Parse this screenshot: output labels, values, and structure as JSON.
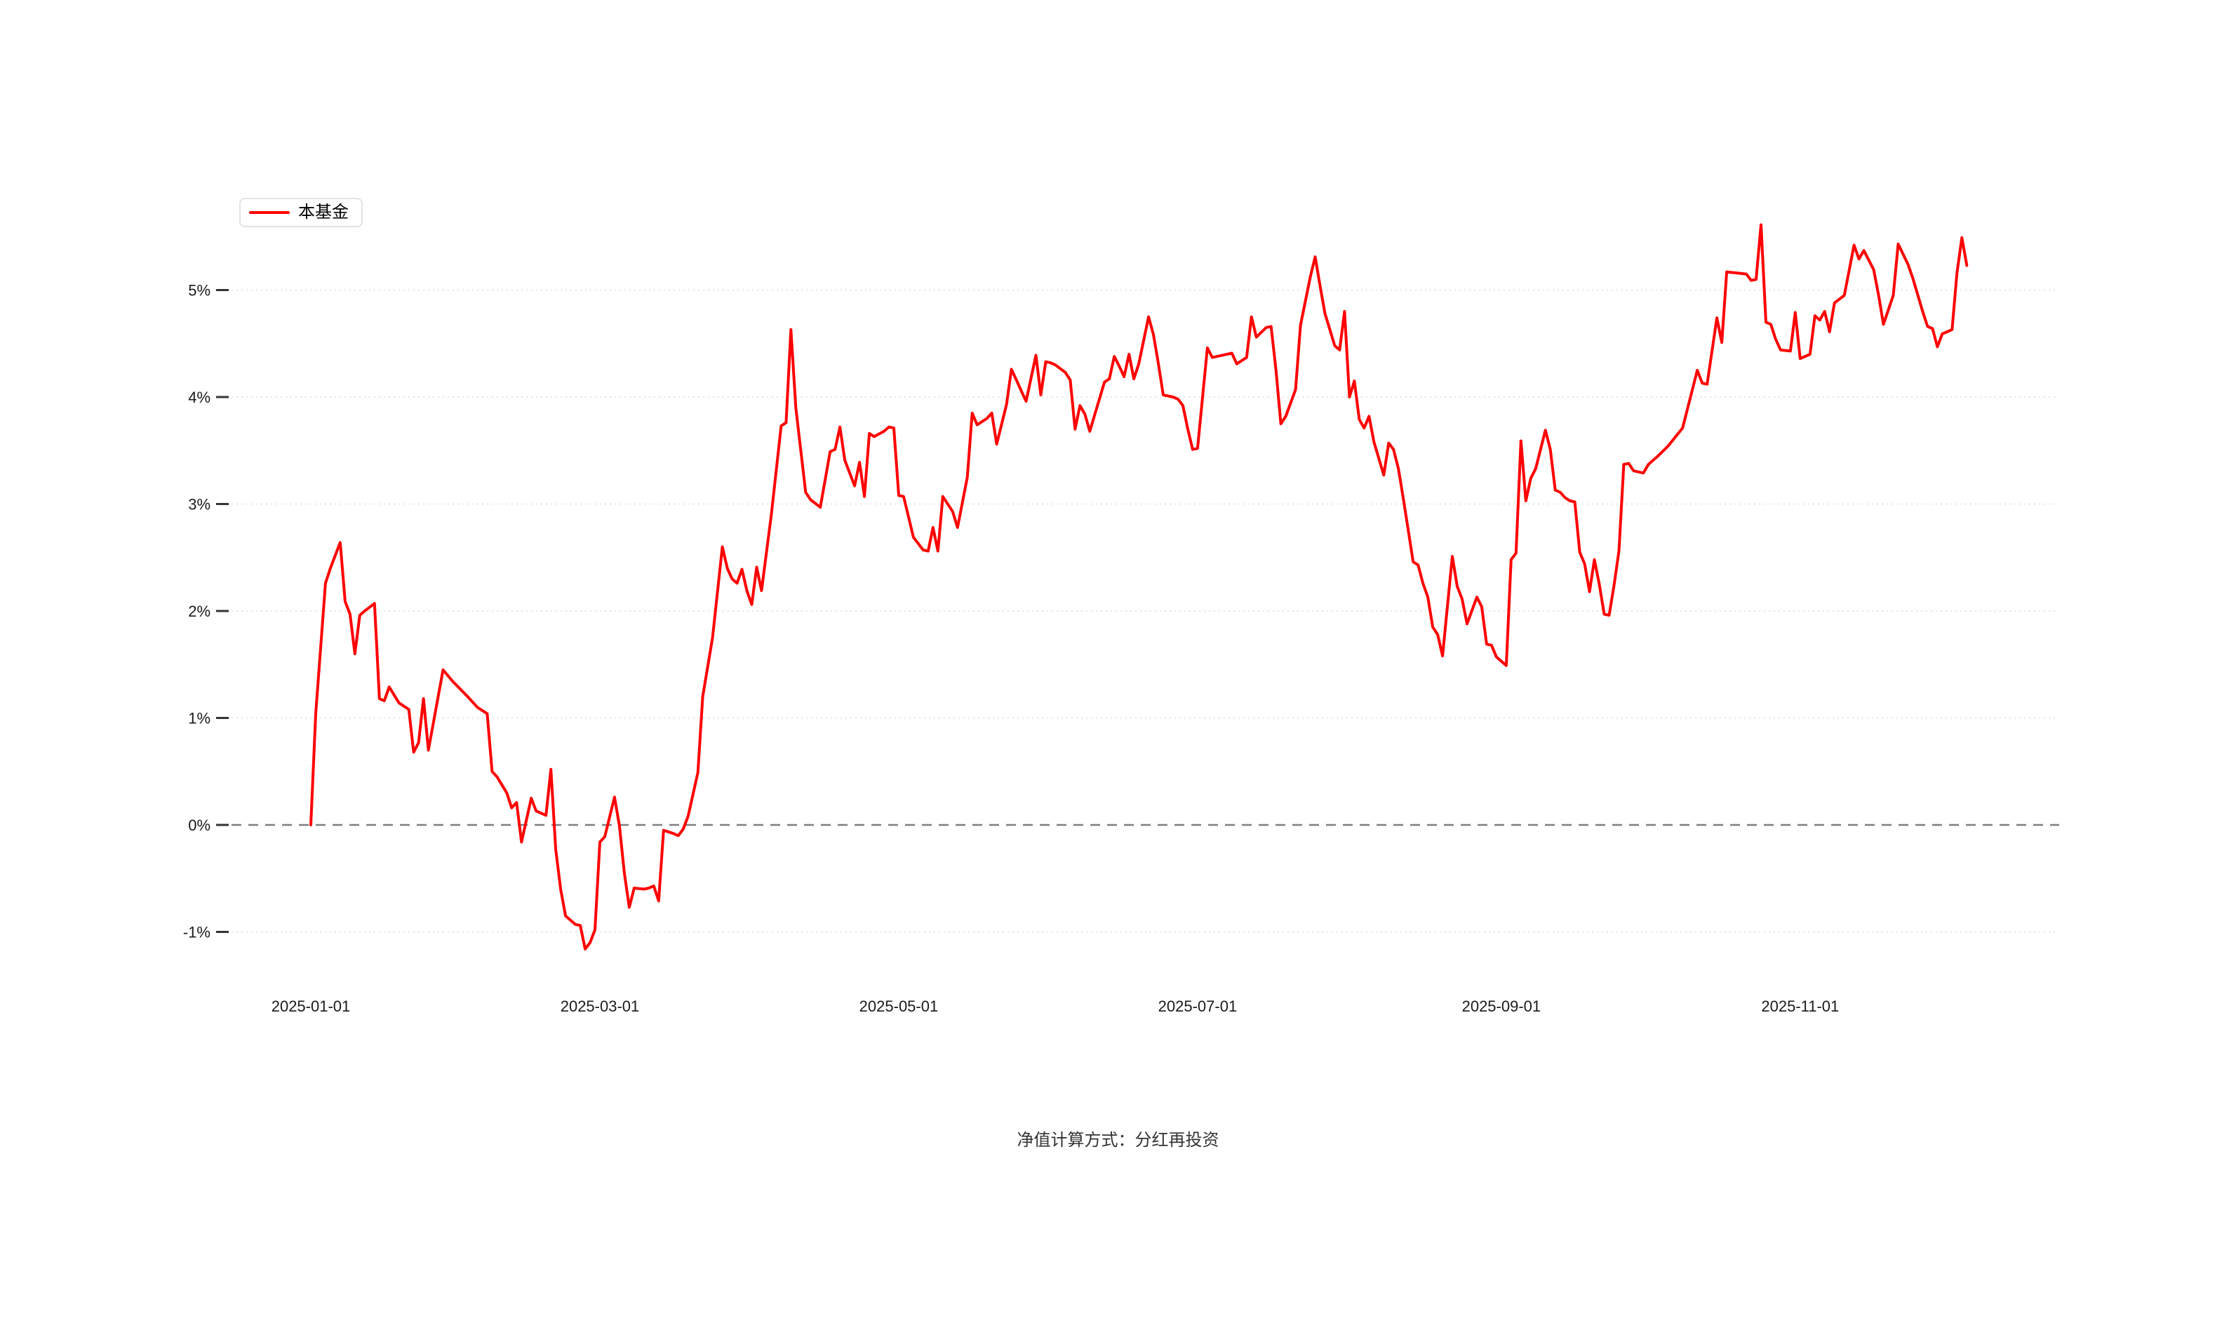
{
  "legend": {
    "label": "本基金"
  },
  "footer": {
    "note": "净值计算方式：分红再投资"
  },
  "chart_data": {
    "type": "line",
    "title": "",
    "xlabel": "",
    "ylabel": "",
    "y_unit": "%",
    "grid": true,
    "legend_position": "top-left",
    "line_color": "#ff0000",
    "zero_line_color": "#7f7f7f",
    "grid_color": "#e3e3e3",
    "ylim": [
      -1.7,
      5.9
    ],
    "y_ticks": [
      {
        "label": "5%",
        "value": 5
      },
      {
        "label": "4%",
        "value": 4
      },
      {
        "label": "3%",
        "value": 3
      },
      {
        "label": "2%",
        "value": 2
      },
      {
        "label": "1%",
        "value": 1
      },
      {
        "label": "0%",
        "value": 0
      },
      {
        "label": "-1%",
        "value": -1
      }
    ],
    "x_ticks": [
      {
        "label": "2025-01-01",
        "day": 0
      },
      {
        "label": "2025-03-01",
        "day": 59
      },
      {
        "label": "2025-05-01",
        "day": 120
      },
      {
        "label": "2025-07-01",
        "day": 181
      },
      {
        "label": "2025-09-01",
        "day": 243
      },
      {
        "label": "2025-11-01",
        "day": 304
      }
    ],
    "series": [
      {
        "name": "本基金",
        "unit": "%",
        "points": [
          [
            0,
            0.0
          ],
          [
            1,
            1.04
          ],
          [
            3,
            2.26
          ],
          [
            4,
            2.4
          ],
          [
            6,
            2.64
          ],
          [
            7,
            2.09
          ],
          [
            8,
            1.97
          ],
          [
            9,
            1.6
          ],
          [
            10,
            1.96
          ],
          [
            11,
            2.0
          ],
          [
            13,
            2.07
          ],
          [
            14,
            1.18
          ],
          [
            15,
            1.16
          ],
          [
            16,
            1.29
          ],
          [
            18,
            1.14
          ],
          [
            20,
            1.08
          ],
          [
            21,
            0.68
          ],
          [
            22,
            0.77
          ],
          [
            23,
            1.18
          ],
          [
            24,
            0.7
          ],
          [
            27,
            1.45
          ],
          [
            29,
            1.34
          ],
          [
            32,
            1.2
          ],
          [
            34,
            1.1
          ],
          [
            36,
            1.04
          ],
          [
            37,
            0.5
          ],
          [
            38,
            0.45
          ],
          [
            40,
            0.3
          ],
          [
            41,
            0.16
          ],
          [
            42,
            0.21
          ],
          [
            43,
            -0.16
          ],
          [
            45,
            0.25
          ],
          [
            46,
            0.13
          ],
          [
            48,
            0.09
          ],
          [
            49,
            0.52
          ],
          [
            50,
            -0.23
          ],
          [
            51,
            -0.6
          ],
          [
            52,
            -0.85
          ],
          [
            53,
            -0.89
          ],
          [
            54,
            -0.93
          ],
          [
            55,
            -0.94
          ],
          [
            56,
            -1.16
          ],
          [
            57,
            -1.1
          ],
          [
            58,
            -0.98
          ],
          [
            59,
            -0.16
          ],
          [
            60,
            -0.11
          ],
          [
            62,
            0.26
          ],
          [
            63,
            -0.01
          ],
          [
            64,
            -0.45
          ],
          [
            65,
            -0.77
          ],
          [
            66,
            -0.59
          ],
          [
            68,
            -0.6
          ],
          [
            69,
            -0.59
          ],
          [
            70,
            -0.57
          ],
          [
            71,
            -0.71
          ],
          [
            72,
            -0.05
          ],
          [
            74,
            -0.08
          ],
          [
            75,
            -0.1
          ],
          [
            76,
            -0.04
          ],
          [
            77,
            0.08
          ],
          [
            79,
            0.49
          ],
          [
            80,
            1.2
          ],
          [
            82,
            1.75
          ],
          [
            84,
            2.6
          ],
          [
            85,
            2.4
          ],
          [
            86,
            2.3
          ],
          [
            87,
            2.26
          ],
          [
            88,
            2.39
          ],
          [
            89,
            2.19
          ],
          [
            90,
            2.06
          ],
          [
            91,
            2.41
          ],
          [
            92,
            2.19
          ],
          [
            94,
            2.9
          ],
          [
            96,
            3.73
          ],
          [
            97,
            3.76
          ],
          [
            98,
            4.63
          ],
          [
            99,
            3.9
          ],
          [
            101,
            3.11
          ],
          [
            102,
            3.04
          ],
          [
            104,
            2.97
          ],
          [
            106,
            3.49
          ],
          [
            107,
            3.51
          ],
          [
            108,
            3.72
          ],
          [
            109,
            3.41
          ],
          [
            111,
            3.17
          ],
          [
            112,
            3.39
          ],
          [
            113,
            3.07
          ],
          [
            114,
            3.66
          ],
          [
            115,
            3.63
          ],
          [
            117,
            3.68
          ],
          [
            118,
            3.72
          ],
          [
            119,
            3.71
          ],
          [
            120,
            3.08
          ],
          [
            121,
            3.07
          ],
          [
            123,
            2.69
          ],
          [
            125,
            2.57
          ],
          [
            126,
            2.56
          ],
          [
            127,
            2.78
          ],
          [
            128,
            2.56
          ],
          [
            129,
            3.07
          ],
          [
            131,
            2.93
          ],
          [
            132,
            2.78
          ],
          [
            134,
            3.25
          ],
          [
            135,
            3.85
          ],
          [
            136,
            3.74
          ],
          [
            138,
            3.8
          ],
          [
            139,
            3.85
          ],
          [
            140,
            3.56
          ],
          [
            142,
            3.93
          ],
          [
            143,
            4.26
          ],
          [
            144,
            4.16
          ],
          [
            145,
            4.06
          ],
          [
            146,
            3.96
          ],
          [
            148,
            4.39
          ],
          [
            149,
            4.02
          ],
          [
            150,
            4.33
          ],
          [
            151,
            4.32
          ],
          [
            152,
            4.3
          ],
          [
            154,
            4.23
          ],
          [
            155,
            4.16
          ],
          [
            156,
            3.7
          ],
          [
            157,
            3.92
          ],
          [
            158,
            3.84
          ],
          [
            159,
            3.68
          ],
          [
            162,
            4.14
          ],
          [
            163,
            4.17
          ],
          [
            164,
            4.38
          ],
          [
            165,
            4.29
          ],
          [
            166,
            4.19
          ],
          [
            167,
            4.4
          ],
          [
            168,
            4.17
          ],
          [
            169,
            4.31
          ],
          [
            171,
            4.75
          ],
          [
            172,
            4.58
          ],
          [
            173,
            4.31
          ],
          [
            174,
            4.02
          ],
          [
            176,
            4.0
          ],
          [
            177,
            3.98
          ],
          [
            178,
            3.92
          ],
          [
            179,
            3.7
          ],
          [
            180,
            3.51
          ],
          [
            181,
            3.52
          ],
          [
            183,
            4.46
          ],
          [
            184,
            4.37
          ],
          [
            185,
            4.38
          ],
          [
            188,
            4.41
          ],
          [
            189,
            4.31
          ],
          [
            191,
            4.37
          ],
          [
            192,
            4.75
          ],
          [
            193,
            4.56
          ],
          [
            195,
            4.65
          ],
          [
            196,
            4.66
          ],
          [
            197,
            4.25
          ],
          [
            198,
            3.75
          ],
          [
            199,
            3.82
          ],
          [
            201,
            4.07
          ],
          [
            202,
            4.67
          ],
          [
            204,
            5.12
          ],
          [
            205,
            5.31
          ],
          [
            206,
            5.04
          ],
          [
            207,
            4.78
          ],
          [
            208,
            4.63
          ],
          [
            209,
            4.48
          ],
          [
            210,
            4.44
          ],
          [
            211,
            4.8
          ],
          [
            212,
            4.0
          ],
          [
            213,
            4.15
          ],
          [
            214,
            3.79
          ],
          [
            215,
            3.71
          ],
          [
            216,
            3.82
          ],
          [
            217,
            3.58
          ],
          [
            219,
            3.27
          ],
          [
            220,
            3.57
          ],
          [
            221,
            3.51
          ],
          [
            222,
            3.33
          ],
          [
            223,
            3.05
          ],
          [
            225,
            2.46
          ],
          [
            226,
            2.43
          ],
          [
            227,
            2.26
          ],
          [
            228,
            2.13
          ],
          [
            229,
            1.85
          ],
          [
            230,
            1.78
          ],
          [
            231,
            1.58
          ],
          [
            233,
            2.51
          ],
          [
            234,
            2.23
          ],
          [
            235,
            2.11
          ],
          [
            236,
            1.88
          ],
          [
            238,
            2.13
          ],
          [
            239,
            2.04
          ],
          [
            240,
            1.69
          ],
          [
            241,
            1.68
          ],
          [
            242,
            1.57
          ],
          [
            244,
            1.49
          ],
          [
            245,
            2.48
          ],
          [
            246,
            2.54
          ],
          [
            247,
            3.59
          ],
          [
            248,
            3.03
          ],
          [
            249,
            3.24
          ],
          [
            250,
            3.33
          ],
          [
            252,
            3.69
          ],
          [
            253,
            3.51
          ],
          [
            254,
            3.13
          ],
          [
            255,
            3.11
          ],
          [
            256,
            3.06
          ],
          [
            257,
            3.03
          ],
          [
            258,
            3.02
          ],
          [
            259,
            2.55
          ],
          [
            260,
            2.44
          ],
          [
            261,
            2.18
          ],
          [
            262,
            2.48
          ],
          [
            263,
            2.25
          ],
          [
            264,
            1.97
          ],
          [
            265,
            1.96
          ],
          [
            266,
            2.24
          ],
          [
            267,
            2.56
          ],
          [
            268,
            3.37
          ],
          [
            269,
            3.38
          ],
          [
            270,
            3.31
          ],
          [
            272,
            3.29
          ],
          [
            273,
            3.37
          ],
          [
            275,
            3.45
          ],
          [
            277,
            3.54
          ],
          [
            280,
            3.71
          ],
          [
            283,
            4.25
          ],
          [
            284,
            4.13
          ],
          [
            285,
            4.12
          ],
          [
            287,
            4.74
          ],
          [
            288,
            4.51
          ],
          [
            289,
            5.17
          ],
          [
            291,
            5.16
          ],
          [
            293,
            5.15
          ],
          [
            294,
            5.09
          ],
          [
            295,
            5.1
          ],
          [
            296,
            5.61
          ],
          [
            297,
            4.7
          ],
          [
            298,
            4.68
          ],
          [
            299,
            4.54
          ],
          [
            300,
            4.44
          ],
          [
            302,
            4.43
          ],
          [
            303,
            4.79
          ],
          [
            304,
            4.36
          ],
          [
            305,
            4.38
          ],
          [
            306,
            4.4
          ],
          [
            307,
            4.76
          ],
          [
            308,
            4.72
          ],
          [
            309,
            4.8
          ],
          [
            310,
            4.61
          ],
          [
            311,
            4.88
          ],
          [
            313,
            4.95
          ],
          [
            315,
            5.42
          ],
          [
            316,
            5.29
          ],
          [
            317,
            5.37
          ],
          [
            319,
            5.19
          ],
          [
            320,
            4.95
          ],
          [
            321,
            4.68
          ],
          [
            323,
            4.95
          ],
          [
            324,
            5.43
          ],
          [
            326,
            5.24
          ],
          [
            327,
            5.11
          ],
          [
            329,
            4.8
          ],
          [
            330,
            4.66
          ],
          [
            331,
            4.64
          ],
          [
            332,
            4.47
          ],
          [
            333,
            4.59
          ],
          [
            335,
            4.63
          ],
          [
            336,
            5.16
          ],
          [
            337,
            5.49
          ],
          [
            338,
            5.23
          ]
        ]
      }
    ]
  }
}
